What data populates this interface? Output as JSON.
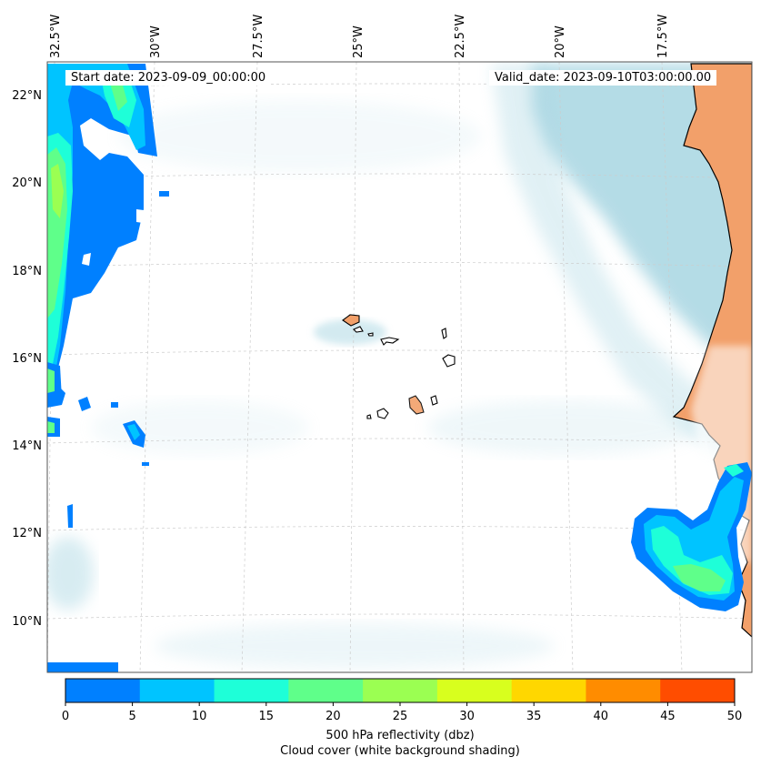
{
  "map": {
    "start_date": "Start date: 2023-09-09_00:00:00",
    "valid_date": "Valid_date: 2023-09-10T03:00:00.00",
    "lon_labels": [
      "32.5°W",
      "30°W",
      "27.5°W",
      "25°W",
      "22.5°W",
      "20°W",
      "17.5°W"
    ],
    "lat_labels": [
      "22°N",
      "20°N",
      "18°N",
      "16°N",
      "14°N",
      "12°N",
      "10°N"
    ],
    "region": "Cape Verde / West African coast"
  },
  "colorbar": {
    "ticks": [
      "0",
      "5",
      "10",
      "15",
      "20",
      "25",
      "30",
      "35",
      "40",
      "45",
      "50"
    ],
    "colors": [
      "#0080ff",
      "#00c4ff",
      "#1effd8",
      "#5fff8a",
      "#9bff52",
      "#d8ff1e",
      "#ffd700",
      "#ff8c00",
      "#ff4d00"
    ],
    "label_line1": "500 hPa reflectivity (dbz)",
    "label_line2": "Cloud cover (white background shading)"
  },
  "colors": {
    "cloud": "#a8d6e2",
    "land": "#f2a06a",
    "coast": "#000000",
    "grid": "#cccccc"
  }
}
